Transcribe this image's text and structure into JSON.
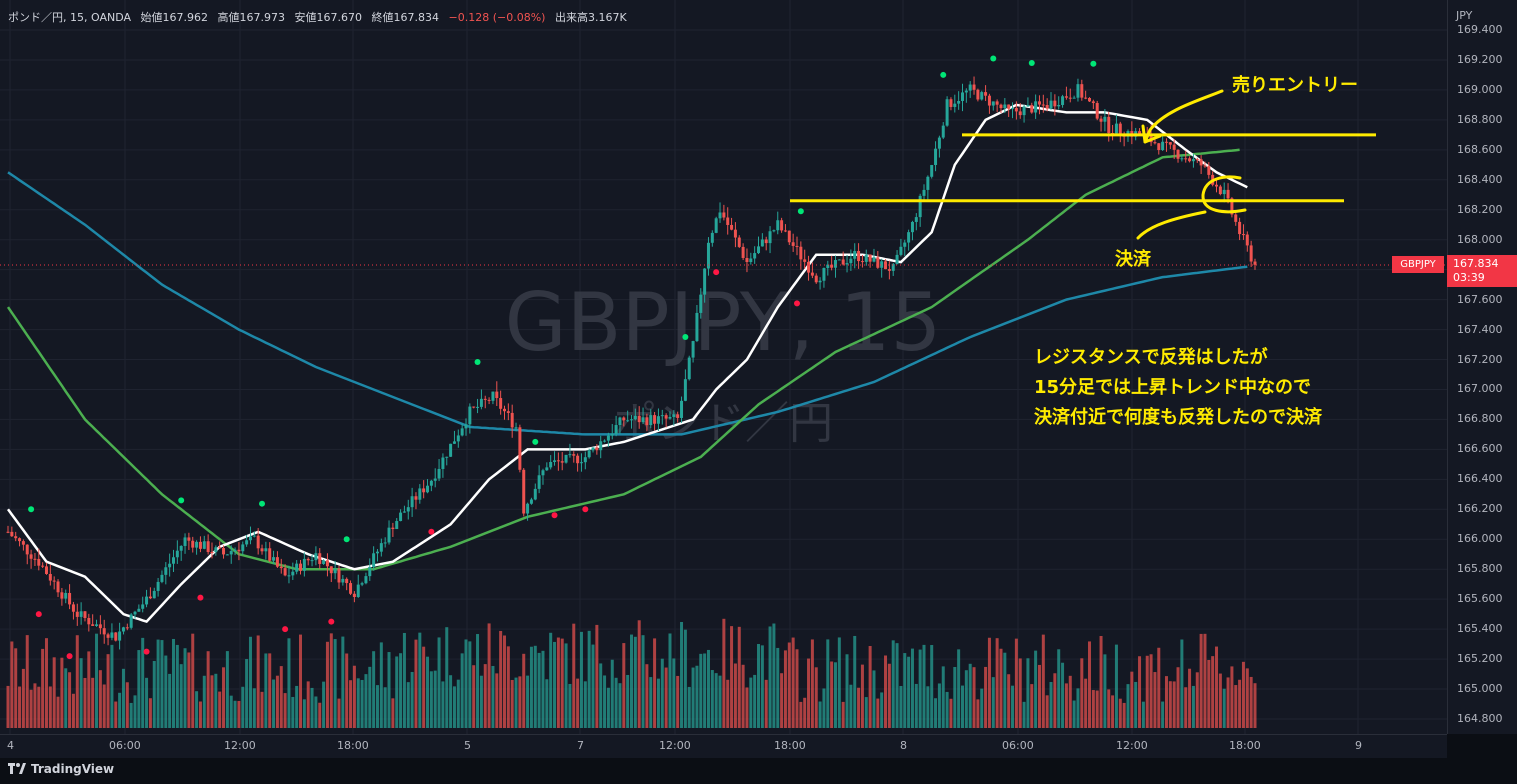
{
  "legend": {
    "symbol": "ポンド／円, 15, OANDA",
    "open": "始値167.962",
    "high": "高値167.973",
    "low": "安値167.670",
    "close": "終値167.834",
    "change": "−0.128 (−0.08%)",
    "volume": "出来高3.167K"
  },
  "currency": "JPY",
  "watermark": {
    "main": "GBPJPY, 15",
    "sub": "ポンド／円"
  },
  "price_axis": {
    "ticks": [
      "169.400",
      "169.200",
      "169.000",
      "168.800",
      "168.600",
      "168.400",
      "168.200",
      "168.000",
      "167.800",
      "167.600",
      "167.400",
      "167.200",
      "167.000",
      "166.800",
      "166.600",
      "166.400",
      "166.200",
      "166.000",
      "165.800",
      "165.600",
      "165.400",
      "165.200",
      "165.000",
      "164.800"
    ]
  },
  "time_axis": {
    "labels": [
      "4",
      "06:00",
      "12:00",
      "18:00",
      "5",
      "7",
      "12:00",
      "18:00",
      "8",
      "06:00",
      "12:00",
      "18:00",
      "9"
    ]
  },
  "current_price": {
    "symbol": "GBPJPY",
    "price": "167.834",
    "countdown": "03:39"
  },
  "annotations": {
    "sell_entry": "売りエントリー",
    "settle": "決済",
    "note_lines": [
      "レジスタンスで反発はしたが",
      "15分足では上昇トレンド中なので",
      "決済付近で何度も反発したので決済"
    ]
  },
  "footer": {
    "brand": "TradingView"
  },
  "colors": {
    "up": "#26a69a",
    "down": "#ef5350",
    "ma_fast": "#ffffff",
    "ma_mid": "#4caf50",
    "ma_slow": "#1e88a8",
    "annotation": "#ffeb00"
  },
  "chart_data": {
    "type": "candlestick",
    "ylim": [
      164.7,
      169.45
    ],
    "anchors": [
      {
        "t": 0,
        "p": 166.05
      },
      {
        "t": 8,
        "p": 165.85
      },
      {
        "t": 18,
        "p": 165.5
      },
      {
        "t": 28,
        "p": 165.35
      },
      {
        "t": 36,
        "p": 165.6
      },
      {
        "t": 46,
        "p": 166.0
      },
      {
        "t": 56,
        "p": 165.9
      },
      {
        "t": 64,
        "p": 166.0
      },
      {
        "t": 72,
        "p": 165.75
      },
      {
        "t": 80,
        "p": 165.9
      },
      {
        "t": 90,
        "p": 165.65
      },
      {
        "t": 100,
        "p": 166.1
      },
      {
        "t": 110,
        "p": 166.4
      },
      {
        "t": 120,
        "p": 166.85
      },
      {
        "t": 126,
        "p": 166.95
      },
      {
        "t": 132,
        "p": 166.75
      },
      {
        "t": 134,
        "p": 166.2
      },
      {
        "t": 140,
        "p": 166.5
      },
      {
        "t": 150,
        "p": 166.55
      },
      {
        "t": 160,
        "p": 166.8
      },
      {
        "t": 170,
        "p": 166.8
      },
      {
        "t": 174,
        "p": 166.8
      },
      {
        "t": 178,
        "p": 167.3
      },
      {
        "t": 182,
        "p": 168.0
      },
      {
        "t": 185,
        "p": 168.2
      },
      {
        "t": 192,
        "p": 167.85
      },
      {
        "t": 200,
        "p": 168.1
      },
      {
        "t": 210,
        "p": 167.75
      },
      {
        "t": 220,
        "p": 167.9
      },
      {
        "t": 230,
        "p": 167.8
      },
      {
        "t": 235,
        "p": 168.1
      },
      {
        "t": 240,
        "p": 168.5
      },
      {
        "t": 244,
        "p": 168.9
      },
      {
        "t": 250,
        "p": 169.0
      },
      {
        "t": 260,
        "p": 168.85
      },
      {
        "t": 270,
        "p": 168.9
      },
      {
        "t": 278,
        "p": 169.0
      },
      {
        "t": 286,
        "p": 168.75
      },
      {
        "t": 294,
        "p": 168.7
      },
      {
        "t": 302,
        "p": 168.6
      },
      {
        "t": 310,
        "p": 168.5
      },
      {
        "t": 316,
        "p": 168.3
      },
      {
        "t": 320,
        "p": 168.05
      },
      {
        "t": 324,
        "p": 167.83
      }
    ],
    "ma_fast": [
      {
        "t": 0,
        "p": 166.2
      },
      {
        "t": 10,
        "p": 165.85
      },
      {
        "t": 20,
        "p": 165.75
      },
      {
        "t": 30,
        "p": 165.5
      },
      {
        "t": 36,
        "p": 165.45
      },
      {
        "t": 45,
        "p": 165.7
      },
      {
        "t": 55,
        "p": 165.95
      },
      {
        "t": 65,
        "p": 166.05
      },
      {
        "t": 78,
        "p": 165.9
      },
      {
        "t": 90,
        "p": 165.8
      },
      {
        "t": 100,
        "p": 165.85
      },
      {
        "t": 115,
        "p": 166.1
      },
      {
        "t": 125,
        "p": 166.4
      },
      {
        "t": 135,
        "p": 166.6
      },
      {
        "t": 150,
        "p": 166.6
      },
      {
        "t": 160,
        "p": 166.65
      },
      {
        "t": 172,
        "p": 166.75
      },
      {
        "t": 178,
        "p": 166.8
      },
      {
        "t": 184,
        "p": 167.0
      },
      {
        "t": 192,
        "p": 167.2
      },
      {
        "t": 200,
        "p": 167.55
      },
      {
        "t": 210,
        "p": 167.9
      },
      {
        "t": 222,
        "p": 167.9
      },
      {
        "t": 232,
        "p": 167.85
      },
      {
        "t": 240,
        "p": 168.05
      },
      {
        "t": 246,
        "p": 168.5
      },
      {
        "t": 254,
        "p": 168.8
      },
      {
        "t": 262,
        "p": 168.9
      },
      {
        "t": 275,
        "p": 168.85
      },
      {
        "t": 285,
        "p": 168.85
      },
      {
        "t": 296,
        "p": 168.8
      },
      {
        "t": 306,
        "p": 168.6
      },
      {
        "t": 314,
        "p": 168.45
      },
      {
        "t": 322,
        "p": 168.35
      }
    ],
    "ma_mid": [
      {
        "t": 0,
        "p": 167.55
      },
      {
        "t": 20,
        "p": 166.8
      },
      {
        "t": 40,
        "p": 166.3
      },
      {
        "t": 60,
        "p": 165.9
      },
      {
        "t": 75,
        "p": 165.8
      },
      {
        "t": 95,
        "p": 165.8
      },
      {
        "t": 115,
        "p": 165.95
      },
      {
        "t": 135,
        "p": 166.15
      },
      {
        "t": 160,
        "p": 166.3
      },
      {
        "t": 180,
        "p": 166.55
      },
      {
        "t": 195,
        "p": 166.9
      },
      {
        "t": 215,
        "p": 167.25
      },
      {
        "t": 240,
        "p": 167.55
      },
      {
        "t": 265,
        "p": 168.0
      },
      {
        "t": 280,
        "p": 168.3
      },
      {
        "t": 300,
        "p": 168.55
      },
      {
        "t": 320,
        "p": 168.6
      }
    ],
    "ma_slow": [
      {
        "t": 0,
        "p": 168.45
      },
      {
        "t": 20,
        "p": 168.1
      },
      {
        "t": 40,
        "p": 167.7
      },
      {
        "t": 60,
        "p": 167.4
      },
      {
        "t": 80,
        "p": 167.15
      },
      {
        "t": 100,
        "p": 166.95
      },
      {
        "t": 120,
        "p": 166.75
      },
      {
        "t": 150,
        "p": 166.7
      },
      {
        "t": 175,
        "p": 166.7
      },
      {
        "t": 200,
        "p": 166.85
      },
      {
        "t": 225,
        "p": 167.05
      },
      {
        "t": 250,
        "p": 167.35
      },
      {
        "t": 275,
        "p": 167.6
      },
      {
        "t": 300,
        "p": 167.75
      },
      {
        "t": 322,
        "p": 167.82
      }
    ],
    "hlines": [
      {
        "name": "resistance-entry",
        "price": 168.7
      },
      {
        "name": "support-settle",
        "price": 168.26
      }
    ]
  }
}
